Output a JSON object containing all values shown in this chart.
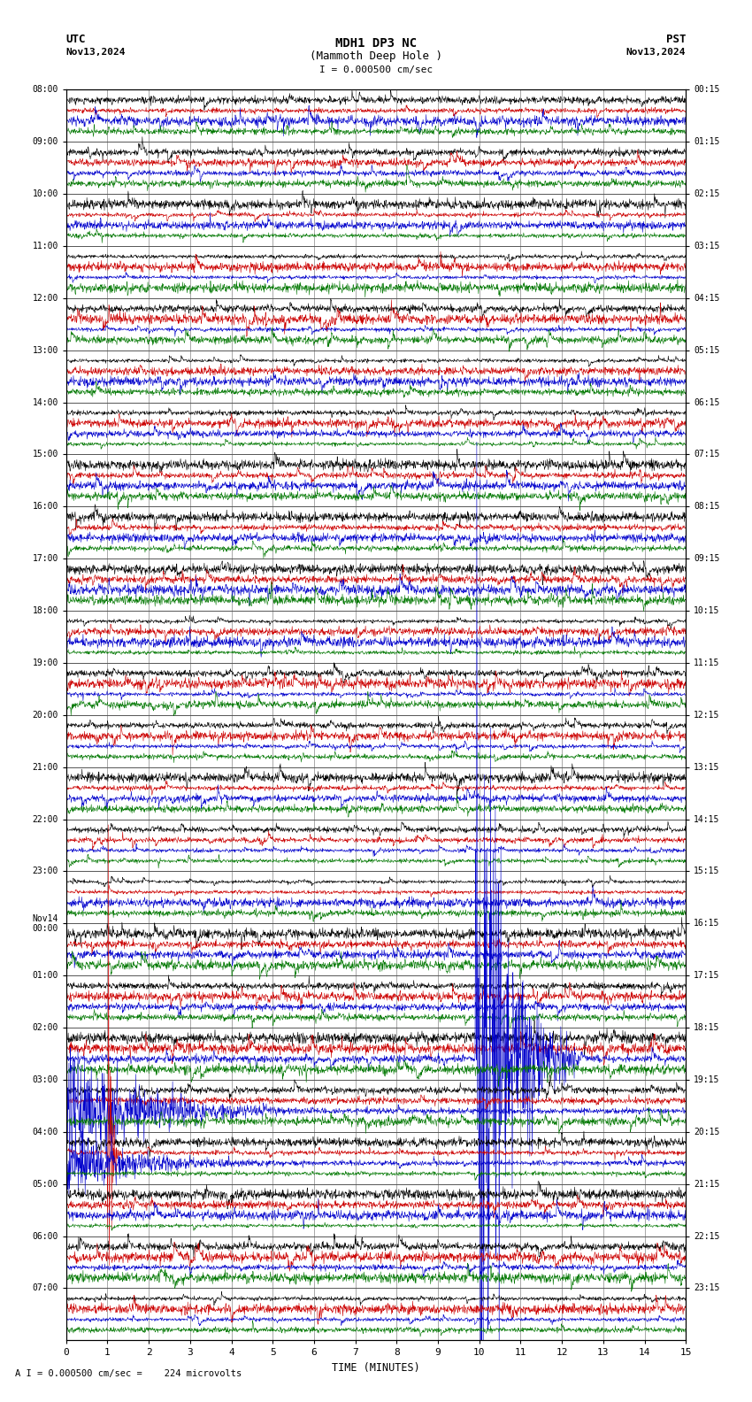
{
  "title_line1": "MDH1 DP3 NC",
  "title_line2": "(Mammoth Deep Hole )",
  "scale_text": "I = 0.000500 cm/sec",
  "utc_label": "UTC",
  "pst_label": "PST",
  "date_left": "Nov13,2024",
  "date_right": "Nov13,2024",
  "bottom_label": "A I = 0.000500 cm/sec =    224 microvolts",
  "xlabel": "TIME (MINUTES)",
  "bg_color": "#ffffff",
  "grid_color": "#555555",
  "trace_colors": [
    "#000000",
    "#cc0000",
    "#0000cc",
    "#007700"
  ],
  "num_rows": 48,
  "samples_per_row": 1800,
  "noise_amp": 0.04,
  "event1_row": 37,
  "event1_sample": 1188,
  "event1_amp": 0.55,
  "event2_row": 40,
  "event2_sample": 120,
  "event2_amp": 0.45,
  "utc_row_labels": {
    "0": "08:00",
    "1": "09:00",
    "2": "10:00",
    "3": "11:00",
    "4": "12:00",
    "5": "13:00",
    "6": "14:00",
    "7": "15:00",
    "8": "16:00",
    "9": "17:00",
    "10": "18:00",
    "11": "19:00",
    "12": "20:00",
    "13": "21:00",
    "14": "22:00",
    "15": "23:00",
    "16": "Nov14\n00:00",
    "17": "01:00",
    "18": "02:00",
    "19": "03:00",
    "20": "04:00",
    "21": "05:00",
    "22": "06:00",
    "23": "07:00"
  },
  "pst_row_labels": {
    "0": "00:15",
    "1": "01:15",
    "2": "02:15",
    "3": "03:15",
    "4": "04:15",
    "5": "05:15",
    "6": "06:15",
    "7": "07:15",
    "8": "08:15",
    "9": "09:15",
    "10": "10:15",
    "11": "11:15",
    "12": "12:15",
    "13": "13:15",
    "14": "14:15",
    "15": "15:15",
    "16": "16:15",
    "17": "17:15",
    "18": "18:15",
    "19": "19:15",
    "20": "20:15",
    "21": "21:15",
    "22": "22:15",
    "23": "23:15"
  }
}
